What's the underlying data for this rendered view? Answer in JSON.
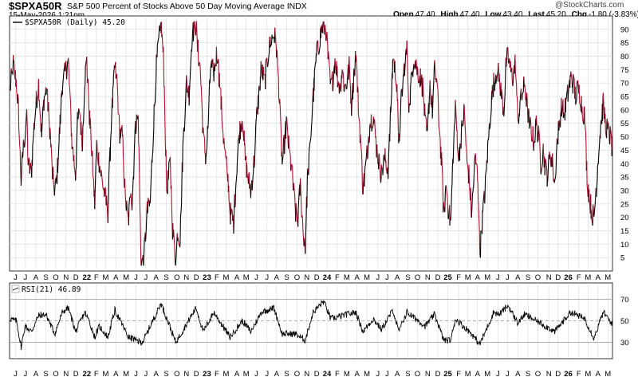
{
  "header": {
    "symbol": "$SPXA50R",
    "description": "S&P 500 Percent of Stocks Above 50 Day Moving Average INDX",
    "datetime": "15-May-2026 1:21pm",
    "watermark": "@StockCharts.com",
    "open_label": "Open",
    "open": "47.40",
    "high_label": "High",
    "high": "47.40",
    "low_label": "Low",
    "low": "43.40",
    "last_label": "Last",
    "last": "45.20",
    "chg_label": "Chg",
    "chg": "-1.80 (-3.83%)"
  },
  "colors": {
    "up": "#000000",
    "down": "#b01030",
    "grid": "#d8d8d8",
    "rsi_line": "#000000",
    "rsi_ref": "#999999",
    "chg_arrow": "#b01030"
  },
  "x_ticks": [
    "J",
    "J",
    "A",
    "S",
    "O",
    "N",
    "D",
    "22",
    "F",
    "M",
    "A",
    "M",
    "J",
    "J",
    "A",
    "S",
    "O",
    "N",
    "D",
    "23",
    "F",
    "M",
    "A",
    "M",
    "J",
    "J",
    "A",
    "S",
    "O",
    "N",
    "D",
    "24",
    "F",
    "M",
    "A",
    "M",
    "J",
    "J",
    "A",
    "S",
    "O",
    "N",
    "D",
    "25",
    "F",
    "M",
    "A",
    "M",
    "J",
    "J",
    "A",
    "S",
    "O",
    "N",
    "D",
    "26",
    "F",
    "M",
    "A",
    "M"
  ],
  "chart_data": [
    {
      "type": "line",
      "title": "$SPXA50R (Daily) 45.20",
      "series_name": "$SPXA50R (Daily)",
      "last_value": 45.2,
      "y_ticks": [
        5,
        10,
        15,
        20,
        25,
        30,
        35,
        40,
        45,
        50,
        55,
        60,
        65,
        70,
        75,
        80,
        85,
        90
      ],
      "ylim": [
        0,
        95
      ],
      "grid": true,
      "x_start": "2021-05-14",
      "x_end": "2026-05-15",
      "anchors": [
        [
          "2021-05-14",
          66
        ],
        [
          "2021-05-25",
          77
        ],
        [
          "2021-06-04",
          70
        ],
        [
          "2021-06-10",
          60
        ],
        [
          "2021-06-18",
          33
        ],
        [
          "2021-06-24",
          45
        ],
        [
          "2021-07-06",
          57
        ],
        [
          "2021-07-09",
          40
        ],
        [
          "2021-07-19",
          36
        ],
        [
          "2021-07-26",
          52
        ],
        [
          "2021-08-02",
          62
        ],
        [
          "2021-08-10",
          70
        ],
        [
          "2021-08-19",
          50
        ],
        [
          "2021-08-26",
          64
        ],
        [
          "2021-09-03",
          68
        ],
        [
          "2021-09-14",
          52
        ],
        [
          "2021-09-20",
          37
        ],
        [
          "2021-09-28",
          30
        ],
        [
          "2021-10-04",
          34
        ],
        [
          "2021-10-14",
          55
        ],
        [
          "2021-10-21",
          70
        ],
        [
          "2021-11-01",
          75
        ],
        [
          "2021-11-08",
          78
        ],
        [
          "2021-11-19",
          48
        ],
        [
          "2021-11-30",
          36
        ],
        [
          "2021-12-06",
          55
        ],
        [
          "2021-12-13",
          60
        ],
        [
          "2021-12-20",
          46
        ],
        [
          "2021-12-28",
          72
        ],
        [
          "2022-01-03",
          78
        ],
        [
          "2022-01-10",
          60
        ],
        [
          "2022-01-18",
          45
        ],
        [
          "2022-01-27",
          25
        ],
        [
          "2022-02-02",
          47
        ],
        [
          "2022-02-10",
          40
        ],
        [
          "2022-02-24",
          30
        ],
        [
          "2022-03-08",
          22
        ],
        [
          "2022-03-18",
          55
        ],
        [
          "2022-03-29",
          76
        ],
        [
          "2022-04-05",
          70
        ],
        [
          "2022-04-12",
          52
        ],
        [
          "2022-04-21",
          50
        ],
        [
          "2022-04-29",
          28
        ],
        [
          "2022-05-09",
          18
        ],
        [
          "2022-05-17",
          32
        ],
        [
          "2022-05-20",
          24
        ],
        [
          "2022-05-31",
          55
        ],
        [
          "2022-06-08",
          57
        ],
        [
          "2022-06-16",
          5
        ],
        [
          "2022-06-24",
          3
        ],
        [
          "2022-07-05",
          22
        ],
        [
          "2022-07-14",
          25
        ],
        [
          "2022-07-22",
          48
        ],
        [
          "2022-08-01",
          75
        ],
        [
          "2022-08-09",
          85
        ],
        [
          "2022-08-16",
          92
        ],
        [
          "2022-08-24",
          78
        ],
        [
          "2022-09-02",
          30
        ],
        [
          "2022-09-13",
          40
        ],
        [
          "2022-09-20",
          16
        ],
        [
          "2022-09-30",
          3
        ],
        [
          "2022-10-05",
          15
        ],
        [
          "2022-10-13",
          12
        ],
        [
          "2022-10-21",
          45
        ],
        [
          "2022-11-01",
          70
        ],
        [
          "2022-11-09",
          66
        ],
        [
          "2022-11-18",
          88
        ],
        [
          "2022-11-30",
          92
        ],
        [
          "2022-12-05",
          83
        ],
        [
          "2022-12-13",
          75
        ],
        [
          "2022-12-22",
          50
        ],
        [
          "2022-12-30",
          42
        ],
        [
          "2023-01-06",
          55
        ],
        [
          "2023-01-13",
          76
        ],
        [
          "2023-01-23",
          74
        ],
        [
          "2023-02-02",
          82
        ],
        [
          "2023-02-10",
          70
        ],
        [
          "2023-02-21",
          50
        ],
        [
          "2023-03-01",
          40
        ],
        [
          "2023-03-08",
          33
        ],
        [
          "2023-03-13",
          22
        ],
        [
          "2023-03-24",
          18
        ],
        [
          "2023-04-03",
          40
        ],
        [
          "2023-04-11",
          52
        ],
        [
          "2023-04-20",
          58
        ],
        [
          "2023-04-28",
          42
        ],
        [
          "2023-05-05",
          36
        ],
        [
          "2023-05-15",
          30
        ],
        [
          "2023-05-26",
          42
        ],
        [
          "2023-06-02",
          58
        ],
        [
          "2023-06-08",
          65
        ],
        [
          "2023-06-16",
          76
        ],
        [
          "2023-06-26",
          70
        ],
        [
          "2023-07-06",
          80
        ],
        [
          "2023-07-14",
          86
        ],
        [
          "2023-07-24",
          88
        ],
        [
          "2023-07-31",
          85
        ],
        [
          "2023-08-08",
          68
        ],
        [
          "2023-08-18",
          40
        ],
        [
          "2023-08-31",
          55
        ],
        [
          "2023-09-08",
          45
        ],
        [
          "2023-09-18",
          35
        ],
        [
          "2023-09-27",
          22
        ],
        [
          "2023-10-04",
          18
        ],
        [
          "2023-10-12",
          32
        ],
        [
          "2023-10-20",
          16
        ],
        [
          "2023-10-27",
          9
        ],
        [
          "2023-11-03",
          35
        ],
        [
          "2023-11-10",
          45
        ],
        [
          "2023-11-20",
          65
        ],
        [
          "2023-11-30",
          80
        ],
        [
          "2023-12-08",
          85
        ],
        [
          "2023-12-15",
          90
        ],
        [
          "2023-12-22",
          91
        ],
        [
          "2023-12-29",
          90
        ],
        [
          "2024-01-05",
          78
        ],
        [
          "2024-01-12",
          68
        ],
        [
          "2024-01-19",
          72
        ],
        [
          "2024-01-26",
          80
        ],
        [
          "2024-02-02",
          72
        ],
        [
          "2024-02-09",
          68
        ],
        [
          "2024-02-16",
          75
        ],
        [
          "2024-02-23",
          68
        ],
        [
          "2024-03-01",
          70
        ],
        [
          "2024-03-08",
          76
        ],
        [
          "2024-03-15",
          62
        ],
        [
          "2024-03-22",
          72
        ],
        [
          "2024-03-28",
          82
        ],
        [
          "2024-04-05",
          62
        ],
        [
          "2024-04-12",
          48
        ],
        [
          "2024-04-19",
          30
        ],
        [
          "2024-04-30",
          42
        ],
        [
          "2024-05-10",
          55
        ],
        [
          "2024-05-20",
          58
        ],
        [
          "2024-05-31",
          45
        ],
        [
          "2024-06-07",
          40
        ],
        [
          "2024-06-14",
          36
        ],
        [
          "2024-06-24",
          42
        ],
        [
          "2024-07-05",
          38
        ],
        [
          "2024-07-12",
          60
        ],
        [
          "2024-07-19",
          80
        ],
        [
          "2024-07-31",
          70
        ],
        [
          "2024-08-05",
          45
        ],
        [
          "2024-08-12",
          62
        ],
        [
          "2024-08-23",
          77
        ],
        [
          "2024-08-30",
          82
        ],
        [
          "2024-09-06",
          60
        ],
        [
          "2024-09-13",
          72
        ],
        [
          "2024-09-20",
          80
        ],
        [
          "2024-09-30",
          75
        ],
        [
          "2024-10-10",
          72
        ],
        [
          "2024-10-18",
          68
        ],
        [
          "2024-10-25",
          54
        ],
        [
          "2024-10-31",
          50
        ],
        [
          "2024-11-08",
          70
        ],
        [
          "2024-11-15",
          60
        ],
        [
          "2024-11-22",
          75
        ],
        [
          "2024-11-29",
          70
        ],
        [
          "2024-12-06",
          54
        ],
        [
          "2024-12-13",
          40
        ],
        [
          "2024-12-20",
          20
        ],
        [
          "2024-12-27",
          33
        ],
        [
          "2025-01-03",
          22
        ],
        [
          "2025-01-10",
          18
        ],
        [
          "2025-01-17",
          44
        ],
        [
          "2025-01-24",
          60
        ],
        [
          "2025-02-03",
          42
        ],
        [
          "2025-02-10",
          50
        ],
        [
          "2025-02-20",
          60
        ],
        [
          "2025-02-28",
          40
        ],
        [
          "2025-03-07",
          35
        ],
        [
          "2025-03-14",
          21
        ],
        [
          "2025-03-25",
          42
        ],
        [
          "2025-04-02",
          35
        ],
        [
          "2025-04-08",
          6
        ],
        [
          "2025-04-15",
          18
        ],
        [
          "2025-04-24",
          30
        ],
        [
          "2025-05-02",
          45
        ],
        [
          "2025-05-12",
          62
        ],
        [
          "2025-05-20",
          70
        ],
        [
          "2025-05-30",
          75
        ],
        [
          "2025-06-06",
          72
        ],
        [
          "2025-06-13",
          65
        ],
        [
          "2025-06-20",
          60
        ],
        [
          "2025-06-27",
          78
        ],
        [
          "2025-07-03",
          80
        ],
        [
          "2025-07-11",
          74
        ],
        [
          "2025-07-18",
          72
        ],
        [
          "2025-07-25",
          78
        ],
        [
          "2025-08-01",
          56
        ],
        [
          "2025-08-08",
          62
        ],
        [
          "2025-08-15",
          66
        ],
        [
          "2025-08-22",
          70
        ],
        [
          "2025-08-29",
          62
        ],
        [
          "2025-09-05",
          55
        ],
        [
          "2025-09-12",
          52
        ],
        [
          "2025-09-19",
          48
        ],
        [
          "2025-09-26",
          55
        ],
        [
          "2025-10-03",
          50
        ],
        [
          "2025-10-10",
          40
        ],
        [
          "2025-10-17",
          45
        ],
        [
          "2025-10-24",
          38
        ],
        [
          "2025-10-31",
          35
        ],
        [
          "2025-11-07",
          45
        ],
        [
          "2025-11-14",
          40
        ],
        [
          "2025-11-21",
          32
        ],
        [
          "2025-11-28",
          48
        ],
        [
          "2025-12-05",
          55
        ],
        [
          "2025-12-12",
          62
        ],
        [
          "2025-12-19",
          58
        ],
        [
          "2025-12-31",
          66
        ],
        [
          "2026-01-09",
          72
        ],
        [
          "2026-01-16",
          70
        ],
        [
          "2026-01-23",
          65
        ],
        [
          "2026-01-30",
          68
        ],
        [
          "2026-02-06",
          66
        ],
        [
          "2026-02-13",
          60
        ],
        [
          "2026-02-20",
          58
        ],
        [
          "2026-02-27",
          35
        ],
        [
          "2026-03-06",
          28
        ],
        [
          "2026-03-13",
          22
        ],
        [
          "2026-03-20",
          20
        ],
        [
          "2026-03-27",
          32
        ],
        [
          "2026-04-03",
          45
        ],
        [
          "2026-04-10",
          55
        ],
        [
          "2026-04-17",
          62
        ],
        [
          "2026-04-24",
          55
        ],
        [
          "2026-05-01",
          52
        ],
        [
          "2026-05-08",
          50
        ],
        [
          "2026-05-15",
          45.2
        ]
      ]
    },
    {
      "type": "line",
      "title": "RSI(21) 46.89",
      "series_name": "RSI(21)",
      "last_value": 46.89,
      "y_ticks": [
        30,
        50,
        70
      ],
      "ref_lines": [
        30,
        50,
        70
      ],
      "ylim": [
        15,
        85
      ],
      "grid": false,
      "anchors": [
        [
          "2021-05-14",
          52
        ],
        [
          "2021-06-04",
          50
        ],
        [
          "2021-06-18",
          26
        ],
        [
          "2021-06-30",
          45
        ],
        [
          "2021-07-19",
          40
        ],
        [
          "2021-08-10",
          55
        ],
        [
          "2021-09-01",
          56
        ],
        [
          "2021-09-28",
          38
        ],
        [
          "2021-10-21",
          58
        ],
        [
          "2021-11-08",
          62
        ],
        [
          "2021-11-30",
          40
        ],
        [
          "2021-12-28",
          58
        ],
        [
          "2022-01-10",
          50
        ],
        [
          "2022-01-27",
          35
        ],
        [
          "2022-02-10",
          45
        ],
        [
          "2022-03-08",
          35
        ],
        [
          "2022-03-29",
          60
        ],
        [
          "2022-05-09",
          35
        ],
        [
          "2022-06-16",
          30
        ],
        [
          "2022-06-24",
          32
        ],
        [
          "2022-08-16",
          66
        ],
        [
          "2022-09-30",
          30
        ],
        [
          "2022-11-30",
          62
        ],
        [
          "2022-12-22",
          40
        ],
        [
          "2023-01-23",
          58
        ],
        [
          "2023-03-13",
          35
        ],
        [
          "2023-04-20",
          50
        ],
        [
          "2023-05-15",
          40
        ],
        [
          "2023-06-16",
          58
        ],
        [
          "2023-07-24",
          62
        ],
        [
          "2023-08-18",
          38
        ],
        [
          "2023-09-27",
          38
        ],
        [
          "2023-10-27",
          32
        ],
        [
          "2023-11-20",
          58
        ],
        [
          "2023-12-22",
          68
        ],
        [
          "2024-01-12",
          52
        ],
        [
          "2024-03-28",
          58
        ],
        [
          "2024-04-19",
          40
        ],
        [
          "2024-05-20",
          52
        ],
        [
          "2024-06-14",
          42
        ],
        [
          "2024-07-19",
          60
        ],
        [
          "2024-08-05",
          40
        ],
        [
          "2024-08-30",
          58
        ],
        [
          "2024-10-25",
          45
        ],
        [
          "2024-11-22",
          56
        ],
        [
          "2024-12-20",
          32
        ],
        [
          "2025-01-10",
          32
        ],
        [
          "2025-01-24",
          52
        ],
        [
          "2025-03-14",
          38
        ],
        [
          "2025-04-08",
          28
        ],
        [
          "2025-05-20",
          58
        ],
        [
          "2025-06-06",
          56
        ],
        [
          "2025-07-03",
          64
        ],
        [
          "2025-08-01",
          48
        ],
        [
          "2025-08-22",
          56
        ],
        [
          "2025-10-31",
          44
        ],
        [
          "2025-11-21",
          40
        ],
        [
          "2025-12-31",
          55
        ],
        [
          "2026-01-09",
          58
        ],
        [
          "2026-02-20",
          52
        ],
        [
          "2026-03-20",
          34
        ],
        [
          "2026-04-17",
          58
        ],
        [
          "2026-05-15",
          46.89
        ]
      ]
    }
  ]
}
